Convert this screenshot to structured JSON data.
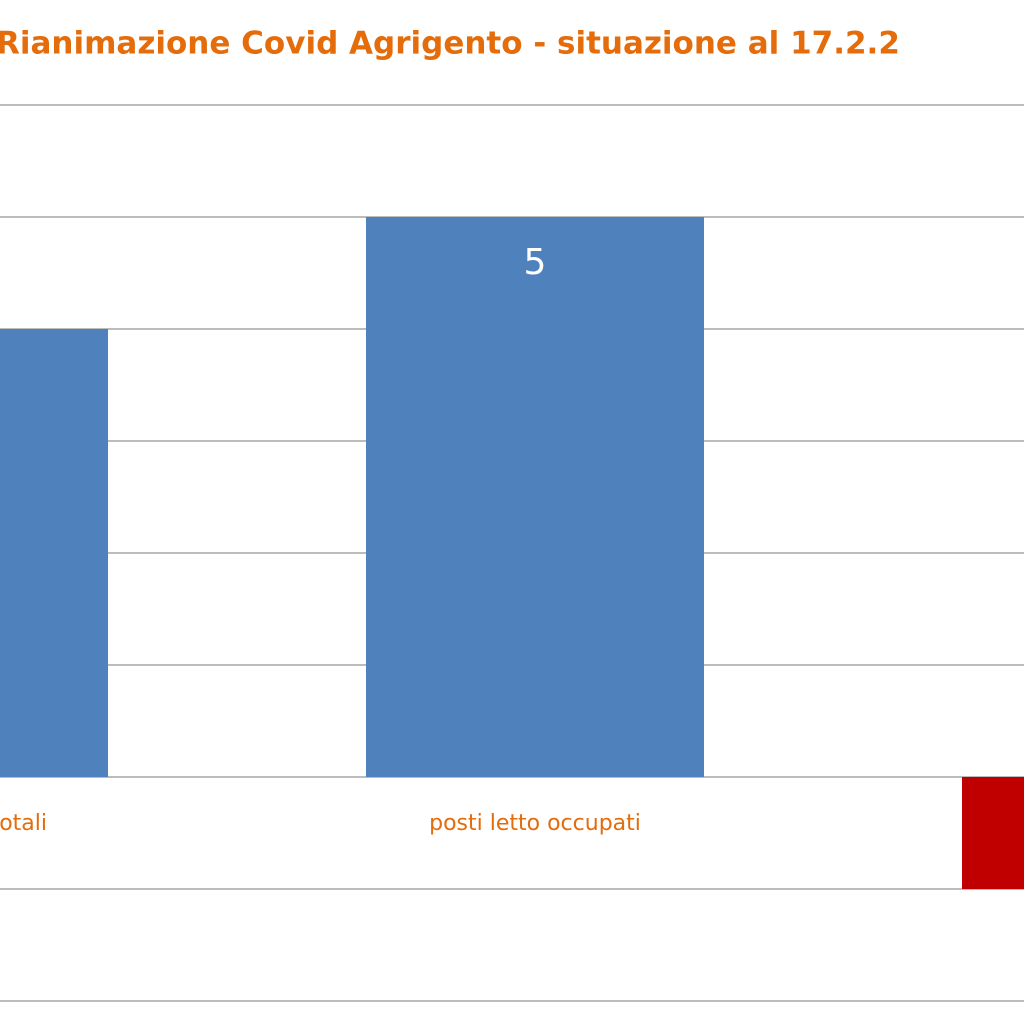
{
  "chart_data": {
    "type": "bar",
    "title": "Rianimazione Covid Agrigento - situazione al 17.2.2",
    "categories": [
      "otali",
      "posti letto occupati",
      null
    ],
    "values": [
      4,
      5,
      -1
    ],
    "colors": [
      "#4f81bd",
      "#4f81bd",
      "#c00000"
    ],
    "ylim": [
      -2,
      6
    ],
    "yticks": [
      -2,
      -1,
      0,
      1,
      2,
      3,
      4,
      5,
      6
    ],
    "grid": true
  }
}
